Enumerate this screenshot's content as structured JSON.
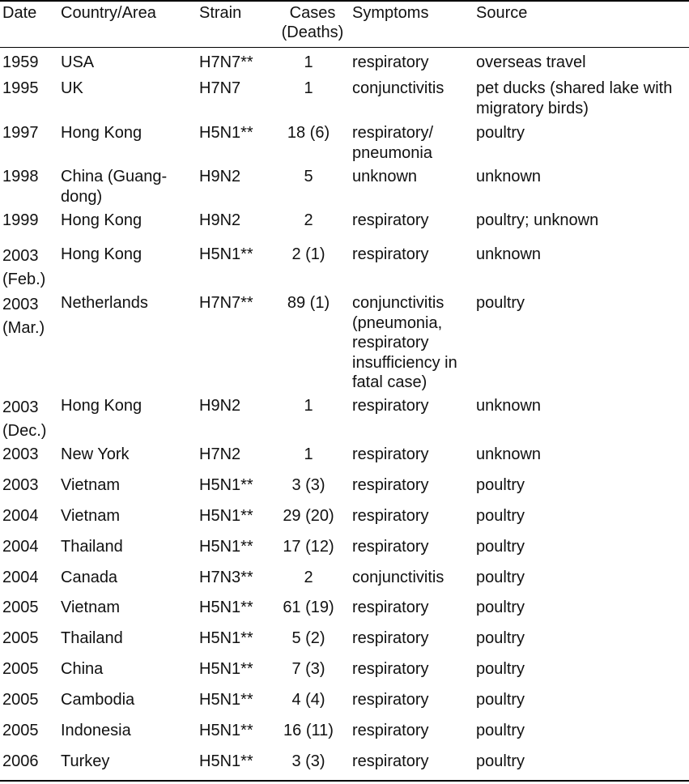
{
  "headers": {
    "date": "Date",
    "country": "Country/Area",
    "strain": "Strain",
    "cases_line1": "Cases",
    "cases_line2": "(Deaths)",
    "symptoms": "Symptoms",
    "source": "Source"
  },
  "rows": [
    {
      "date": [
        "1959"
      ],
      "country": [
        "USA"
      ],
      "strain": [
        "H7N7**"
      ],
      "cases": [
        "1"
      ],
      "symptoms": [
        "respiratory"
      ],
      "source": [
        "overseas travel"
      ]
    },
    {
      "date": [
        "1995"
      ],
      "country": [
        "UK"
      ],
      "strain": [
        "H7N7"
      ],
      "cases": [
        "1"
      ],
      "symptoms": [
        "conjunctivitis"
      ],
      "source": [
        "pet ducks (shared lake with",
        "migratory birds)"
      ]
    },
    {
      "date": [
        "1997"
      ],
      "country": [
        "Hong Kong"
      ],
      "strain": [
        "H5N1**"
      ],
      "cases": [
        "18 (6)"
      ],
      "symptoms": [
        "respiratory/",
        "pneumonia"
      ],
      "source": [
        "poultry"
      ]
    },
    {
      "date": [
        "1998"
      ],
      "country": [
        "China (Guang-",
        "dong)"
      ],
      "strain": [
        "H9N2"
      ],
      "cases": [
        "5"
      ],
      "symptoms": [
        "unknown"
      ],
      "source": [
        "unknown"
      ]
    },
    {
      "date": [
        "1999"
      ],
      "country": [
        "Hong Kong"
      ],
      "strain": [
        "H9N2"
      ],
      "cases": [
        "2"
      ],
      "symptoms": [
        "respiratory"
      ],
      "source": [
        "poultry; unknown"
      ]
    },
    {
      "date": [
        "2003",
        "(Feb.)"
      ],
      "country": [
        "Hong Kong"
      ],
      "strain": [
        "H5N1**"
      ],
      "cases": [
        "2 (1)"
      ],
      "symptoms": [
        "respiratory"
      ],
      "source": [
        "unknown"
      ]
    },
    {
      "date": [
        "2003",
        "(Mar.)"
      ],
      "country": [
        "Netherlands"
      ],
      "strain": [
        "H7N7**"
      ],
      "cases": [
        "89 (1)"
      ],
      "symptoms": [
        "conjunctivitis",
        "(pneumonia,",
        "respiratory",
        "insufficiency in",
        "fatal case)"
      ],
      "source": [
        "poultry"
      ]
    },
    {
      "date": [
        "2003",
        "(Dec.)"
      ],
      "country": [
        "Hong Kong"
      ],
      "strain": [
        "H9N2"
      ],
      "cases": [
        "1"
      ],
      "symptoms": [
        "respiratory"
      ],
      "source": [
        "unknown"
      ]
    },
    {
      "date": [
        "2003"
      ],
      "country": [
        "New York"
      ],
      "strain": [
        "H7N2"
      ],
      "cases": [
        "1"
      ],
      "symptoms": [
        "respiratory"
      ],
      "source": [
        "unknown"
      ]
    },
    {
      "date": [
        "2003"
      ],
      "country": [
        "Vietnam"
      ],
      "strain": [
        "H5N1**"
      ],
      "cases": [
        "3 (3)"
      ],
      "symptoms": [
        "respiratory"
      ],
      "source": [
        "poultry"
      ]
    },
    {
      "date": [
        "2004"
      ],
      "country": [
        "Vietnam"
      ],
      "strain": [
        "H5N1**"
      ],
      "cases": [
        "29 (20)"
      ],
      "symptoms": [
        "respiratory"
      ],
      "source": [
        "poultry"
      ]
    },
    {
      "date": [
        "2004"
      ],
      "country": [
        "Thailand"
      ],
      "strain": [
        "H5N1**"
      ],
      "cases": [
        "17 (12)"
      ],
      "symptoms": [
        "respiratory"
      ],
      "source": [
        "poultry"
      ]
    },
    {
      "date": [
        "2004"
      ],
      "country": [
        "Canada"
      ],
      "strain": [
        "H7N3**"
      ],
      "cases": [
        "2"
      ],
      "symptoms": [
        "conjunctivitis"
      ],
      "source": [
        "poultry"
      ]
    },
    {
      "date": [
        "2005"
      ],
      "country": [
        "Vietnam"
      ],
      "strain": [
        "H5N1**"
      ],
      "cases": [
        "61 (19)"
      ],
      "symptoms": [
        "respiratory"
      ],
      "source": [
        "poultry"
      ]
    },
    {
      "date": [
        "2005"
      ],
      "country": [
        "Thailand"
      ],
      "strain": [
        "H5N1**"
      ],
      "cases": [
        "5 (2)"
      ],
      "symptoms": [
        "respiratory"
      ],
      "source": [
        "poultry"
      ]
    },
    {
      "date": [
        "2005"
      ],
      "country": [
        "China"
      ],
      "strain": [
        "H5N1**"
      ],
      "cases": [
        "7 (3)"
      ],
      "symptoms": [
        "respiratory"
      ],
      "source": [
        "poultry"
      ]
    },
    {
      "date": [
        "2005"
      ],
      "country": [
        "Cambodia"
      ],
      "strain": [
        "H5N1**"
      ],
      "cases": [
        "4 (4)"
      ],
      "symptoms": [
        "respiratory"
      ],
      "source": [
        "poultry"
      ]
    },
    {
      "date": [
        "2005"
      ],
      "country": [
        "Indonesia"
      ],
      "strain": [
        "H5N1**"
      ],
      "cases": [
        "16 (11)"
      ],
      "symptoms": [
        "respiratory"
      ],
      "source": [
        "poultry"
      ]
    },
    {
      "date": [
        "2006"
      ],
      "country": [
        "Turkey"
      ],
      "strain": [
        "H5N1**"
      ],
      "cases": [
        "3 (3)"
      ],
      "symptoms": [
        "respiratory"
      ],
      "source": [
        "poultry"
      ]
    }
  ]
}
